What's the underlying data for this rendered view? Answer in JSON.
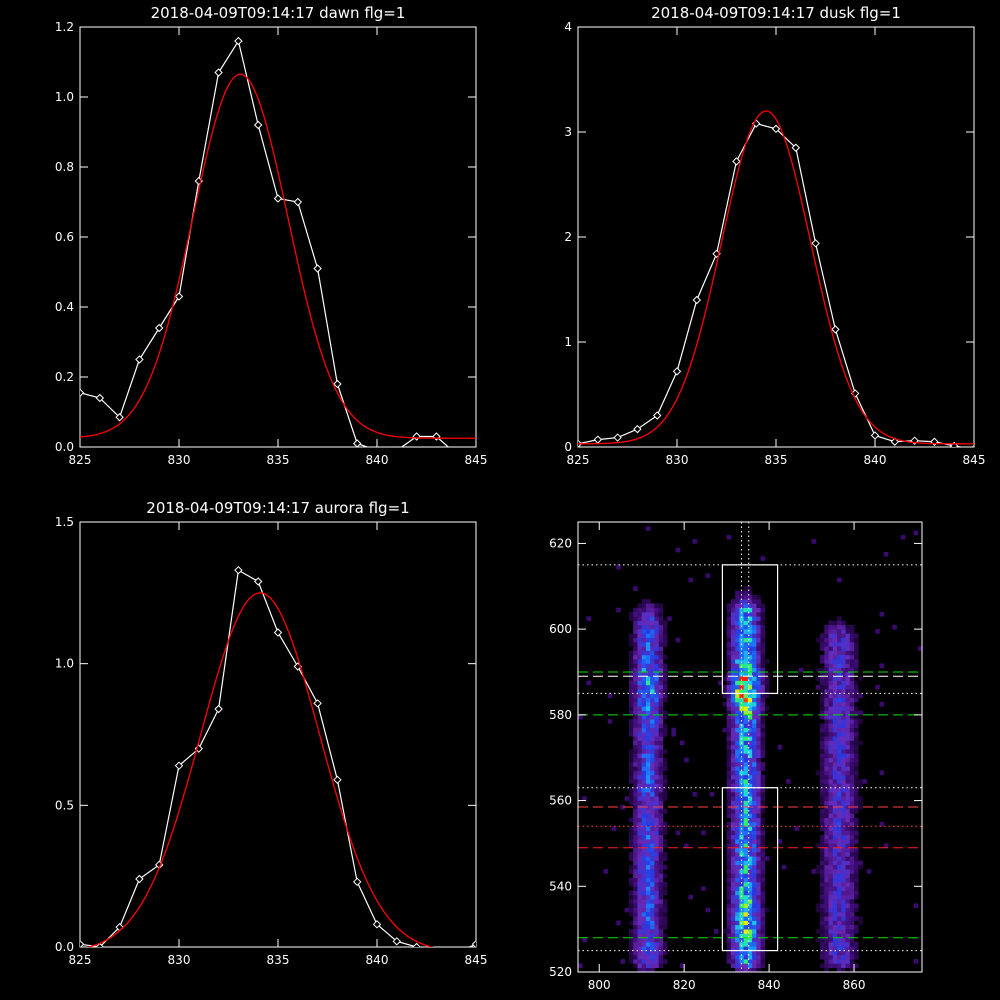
{
  "chart_data": [
    {
      "type": "line",
      "title": "2018-04-09T09:14:17 dawn flg=1",
      "xlim": [
        825,
        845
      ],
      "ylim": [
        0.0,
        1.2
      ],
      "x_ticks": [
        825,
        830,
        835,
        840,
        845
      ],
      "y_ticks": [
        0.0,
        0.2,
        0.4,
        0.6,
        0.8,
        1.0,
        1.2
      ],
      "y_tick_labels": [
        "0.0",
        "0.2",
        "0.4",
        "0.6",
        "0.8",
        "1.0",
        "1.2"
      ],
      "series": [
        {
          "color": "#ffffff",
          "marker": "diamond",
          "x": [
            825,
            826,
            827,
            828,
            829,
            830,
            831,
            832,
            833,
            834,
            835,
            836,
            837,
            838,
            839,
            840,
            841,
            842,
            843,
            844,
            845
          ],
          "y": [
            0.155,
            0.14,
            0.085,
            0.25,
            0.34,
            0.43,
            0.76,
            1.07,
            1.16,
            0.92,
            0.71,
            0.7,
            0.51,
            0.18,
            0.01,
            -0.01,
            -0.01,
            0.03,
            0.03,
            -0.02,
            -0.02
          ]
        },
        {
          "color": "#ff0000",
          "curve": "gaussian",
          "center": 833.1,
          "sigma": 2.4,
          "amplitude": 1.04,
          "baseline": 0.025
        }
      ]
    },
    {
      "type": "line",
      "title": "2018-04-09T09:14:17 dusk flg=1",
      "xlim": [
        825,
        845
      ],
      "ylim": [
        0,
        4
      ],
      "x_ticks": [
        825,
        830,
        835,
        840,
        845
      ],
      "y_ticks": [
        0,
        1,
        2,
        3,
        4
      ],
      "y_tick_labels": [
        "0",
        "1",
        "2",
        "3",
        "4"
      ],
      "series": [
        {
          "color": "#ffffff",
          "marker": "diamond",
          "x": [
            825,
            826,
            827,
            828,
            829,
            830,
            831,
            832,
            833,
            834,
            835,
            836,
            837,
            838,
            839,
            840,
            841,
            842,
            843,
            844,
            845
          ],
          "y": [
            0.03,
            0.07,
            0.09,
            0.17,
            0.3,
            0.72,
            1.4,
            1.84,
            2.72,
            3.08,
            3.03,
            2.85,
            1.94,
            1.12,
            0.51,
            0.11,
            0.05,
            0.06,
            0.05,
            0.01,
            -0.02
          ]
        },
        {
          "color": "#ff0000",
          "curve": "gaussian",
          "center": 834.5,
          "sigma": 2.25,
          "amplitude": 3.17,
          "baseline": 0.03
        }
      ]
    },
    {
      "type": "line",
      "title": "2018-04-09T09:14:17 aurora flg=1",
      "xlim": [
        825,
        845
      ],
      "ylim": [
        0.0,
        1.5
      ],
      "x_ticks": [
        825,
        830,
        835,
        840,
        845
      ],
      "y_ticks": [
        0.0,
        0.5,
        1.0,
        1.5
      ],
      "y_tick_labels": [
        "0.0",
        "0.5",
        "1.0",
        "1.5"
      ],
      "series": [
        {
          "color": "#ffffff",
          "marker": "diamond",
          "x": [
            825,
            826,
            827,
            828,
            829,
            830,
            831,
            832,
            833,
            834,
            835,
            836,
            837,
            838,
            839,
            840,
            841,
            842,
            843,
            844,
            845
          ],
          "y": [
            0.01,
            0.0,
            0.07,
            0.24,
            0.29,
            0.64,
            0.7,
            0.84,
            1.33,
            1.29,
            1.11,
            0.99,
            0.86,
            0.59,
            0.23,
            0.08,
            0.02,
            0.0,
            -0.02,
            -0.02,
            0.01
          ]
        },
        {
          "color": "#ff0000",
          "curve": "gaussian",
          "center": 834.1,
          "sigma": 3.0,
          "amplitude": 1.27,
          "baseline": -0.02
        }
      ]
    },
    {
      "type": "heatmap",
      "xlim": [
        795,
        876
      ],
      "ylim": [
        520,
        625
      ],
      "x_ticks": [
        800,
        820,
        840,
        860
      ],
      "y_ticks": [
        520,
        540,
        560,
        580,
        600,
        620
      ],
      "colorscale": [
        "#000000",
        "#3a0a6e",
        "#6a2ab8",
        "#2838e0",
        "#1c80ff",
        "#20d8e0",
        "#30f060",
        "#f0f000",
        "#ff2000"
      ],
      "columns": [
        {
          "x": 811.5,
          "width": 5,
          "y_from": 522,
          "y_to": 601,
          "peak": 0.55
        },
        {
          "x": 834.5,
          "width": 5,
          "y_from": 522,
          "y_to": 603,
          "peak": 1.0
        },
        {
          "x": 856.5,
          "width": 6,
          "y_from": 522,
          "y_to": 597,
          "peak": 0.3
        }
      ],
      "boxes": [
        {
          "x0": 829,
          "x1": 842,
          "y0": 585,
          "y1": 615
        },
        {
          "x0": 829,
          "x1": 842,
          "y0": 525,
          "y1": 563
        }
      ],
      "vertical_lines": [
        {
          "x": 833.5,
          "color": "#ffffff",
          "style": "dotted"
        },
        {
          "x": 835.2,
          "color": "#ffffff",
          "style": "dotted"
        }
      ],
      "horizontal_lines": [
        {
          "y": 615,
          "color": "#ffffff",
          "style": "dotted"
        },
        {
          "y": 590,
          "color": "#00e000",
          "style": "dashed"
        },
        {
          "y": 589,
          "color": "#ffffff",
          "style": "dashed"
        },
        {
          "y": 585,
          "color": "#ffffff",
          "style": "dotted"
        },
        {
          "y": 580,
          "color": "#00e000",
          "style": "dashed"
        },
        {
          "y": 563,
          "color": "#ffffff",
          "style": "dotted"
        },
        {
          "y": 558.5,
          "color": "#ff4040",
          "style": "dashed"
        },
        {
          "y": 554,
          "color": "#ff4040",
          "style": "dotted"
        },
        {
          "y": 549,
          "color": "#ff2020",
          "style": "dashed"
        },
        {
          "y": 528,
          "color": "#00e000",
          "style": "dashed"
        },
        {
          "y": 525,
          "color": "#ffffff",
          "style": "dotted"
        }
      ]
    }
  ]
}
